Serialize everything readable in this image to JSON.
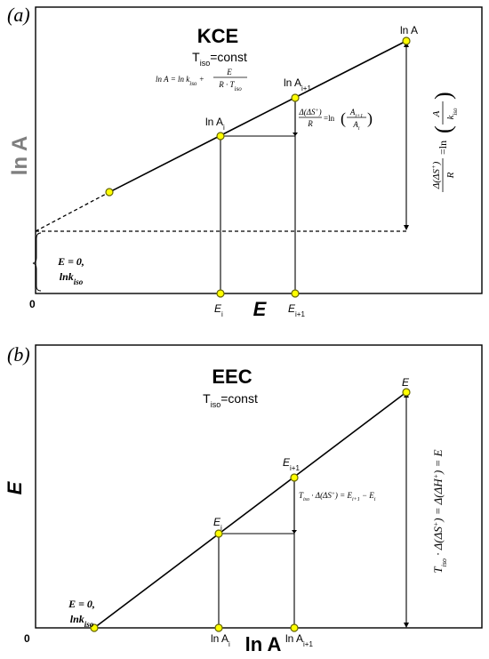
{
  "panel_a": {
    "label": "(a)",
    "title": "KCE",
    "subtitle": "T",
    "subtitle_sub": "iso",
    "subtitle_rest": "=const",
    "equation": "ln A = ln k_iso + E / (R · T_iso)",
    "y_axis_label": "ln A",
    "x_axis_label": "E",
    "origin_label": "0",
    "intercept_label_line1": "E = 0,",
    "intercept_label_line2": "lnk",
    "intercept_label_sub": "iso",
    "point_lnA": "ln A",
    "point_lnAi1": "ln A",
    "point_lnAi1_sub": "i+1",
    "point_lnAi": "ln A",
    "point_lnAi_sub": "i",
    "tick_Ei": "E",
    "tick_Ei_sub": "i",
    "tick_Ei1": "E",
    "tick_Ei1_sub": "i+1",
    "step_equation": "Δ(ΔS⁺)/R = ln(A_i+1/A_i)",
    "vertical_equation": "Δ(ΔS⁺)/R = ln(A/k_iso)"
  },
  "panel_b": {
    "label": "(b)",
    "title": "EEC",
    "subtitle": "T",
    "subtitle_sub": "iso",
    "subtitle_rest": "=const",
    "y_axis_label": "E",
    "x_axis_label": "ln A",
    "origin_label": "0",
    "intercept_label_line1": "E = 0,",
    "intercept_label_line2": "lnk",
    "intercept_label_sub": "iso",
    "point_E": "E",
    "point_Ei1": "E",
    "point_Ei1_sub": "i+1",
    "point_Ei": "E",
    "point_Ei_sub": "i",
    "tick_lnAi": "ln A",
    "tick_lnAi_sub": "i",
    "tick_lnAi1": "ln A",
    "tick_lnAi1_sub": "i+1",
    "step_equation": "T_iso · Δ(ΔS⁺) = E_i+1 − E_i",
    "vertical_equation": "T_iso · Δ(ΔS⁺) = Δ(ΔH⁺) = E"
  },
  "colors": {
    "point_fill": "#ffff00",
    "axis_grey": "#7f7f7f"
  }
}
